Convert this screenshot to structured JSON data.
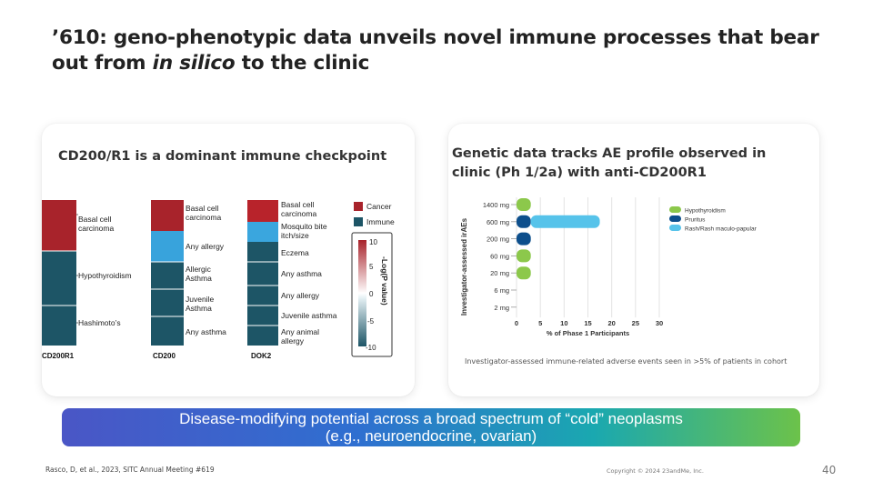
{
  "slide": {
    "title_pre": "’610: geno-phenotypic data unveils novel immune processes that bear out from ",
    "title_em": "in silico",
    "title_post": " to the clinic",
    "banner_line1": "Disease-modifying potential across a broad spectrum of “cold” neoplasms",
    "banner_line2": "(e.g., neuroendocrine, ovarian)",
    "footer_ref": "Rasco, D, et al., 2023, SITC Annual Meeting #619",
    "footer_copyright": "Copyright © 2024 23andMe, Inc.",
    "page_number": "40"
  },
  "left_panel": {
    "heading": "CD200/R1 is a dominant immune checkpoint",
    "columns": [
      {
        "name": "CD200R1",
        "labels": [
          "Basal cell carcinoma",
          "Hypothyroidism",
          "Hashimoto’s"
        ],
        "cells": [
          {
            "label": "Basal cell carcinoma",
            "type": "Cancer"
          },
          {
            "label": "Hypothyroidism",
            "type": "Immune"
          },
          {
            "label": "Hashimoto’s",
            "type": "Immune"
          }
        ]
      },
      {
        "name": "CD200",
        "labels": [
          "Basal cell carcinoma",
          "Any allergy",
          "Allergic Asthma",
          "Juvenile Asthma",
          "Any asthma"
        ],
        "cells": []
      },
      {
        "name": "DOK2",
        "labels": [
          "Basal cell carcinoma",
          "Mosquito bite itch/size",
          "Eczema",
          "Any asthma",
          "Any allergy",
          "Juvenile asthma",
          "Any animal allergy"
        ],
        "cells": []
      }
    ],
    "legend": {
      "cancer": "Cancer",
      "immune": "Immune",
      "cancer_color": "#a8232b",
      "immune_color": "#1d5566"
    },
    "colorbar": {
      "ticks": [
        "10",
        "5",
        "0",
        "-5",
        "-10"
      ],
      "label": "-Log(P value)"
    }
  },
  "right_panel": {
    "heading_line1": "Genetic data tracks AE profile observed in",
    "heading_line2": "clinic (Ph 1/2a) with anti-CD200R1",
    "caption": "Investigator-assessed immune-related adverse events seen in >5% of patients in cohort"
  },
  "chart_data": {
    "type": "bar",
    "orientation": "horizontal",
    "categories": [
      "1400 mg",
      "600 mg",
      "200 mg",
      "60 mg",
      "20 mg",
      "6 mg",
      "2 mg"
    ],
    "series": [
      {
        "name": "Hypothyroidism",
        "color": "#8cc84b",
        "values": [
          3,
          0,
          0,
          3,
          3,
          0,
          0
        ]
      },
      {
        "name": "Pruritus",
        "color": "#0d4f8c",
        "values": [
          0,
          3,
          3,
          0,
          0,
          0,
          0
        ]
      },
      {
        "name": "Rash/Rash maculo-papular",
        "color": "#56c3ea",
        "values": [
          0,
          14.5,
          0,
          0,
          0,
          0,
          0
        ]
      }
    ],
    "xlabel": "% of Phase 1 Participants",
    "ylabel": "Investigator-assessed irAEs",
    "xlim": [
      0,
      30
    ],
    "xticks": [
      "0",
      "5",
      "10",
      "15",
      "20",
      "25",
      "30"
    ],
    "grid": true,
    "legend_position": "top-right"
  }
}
